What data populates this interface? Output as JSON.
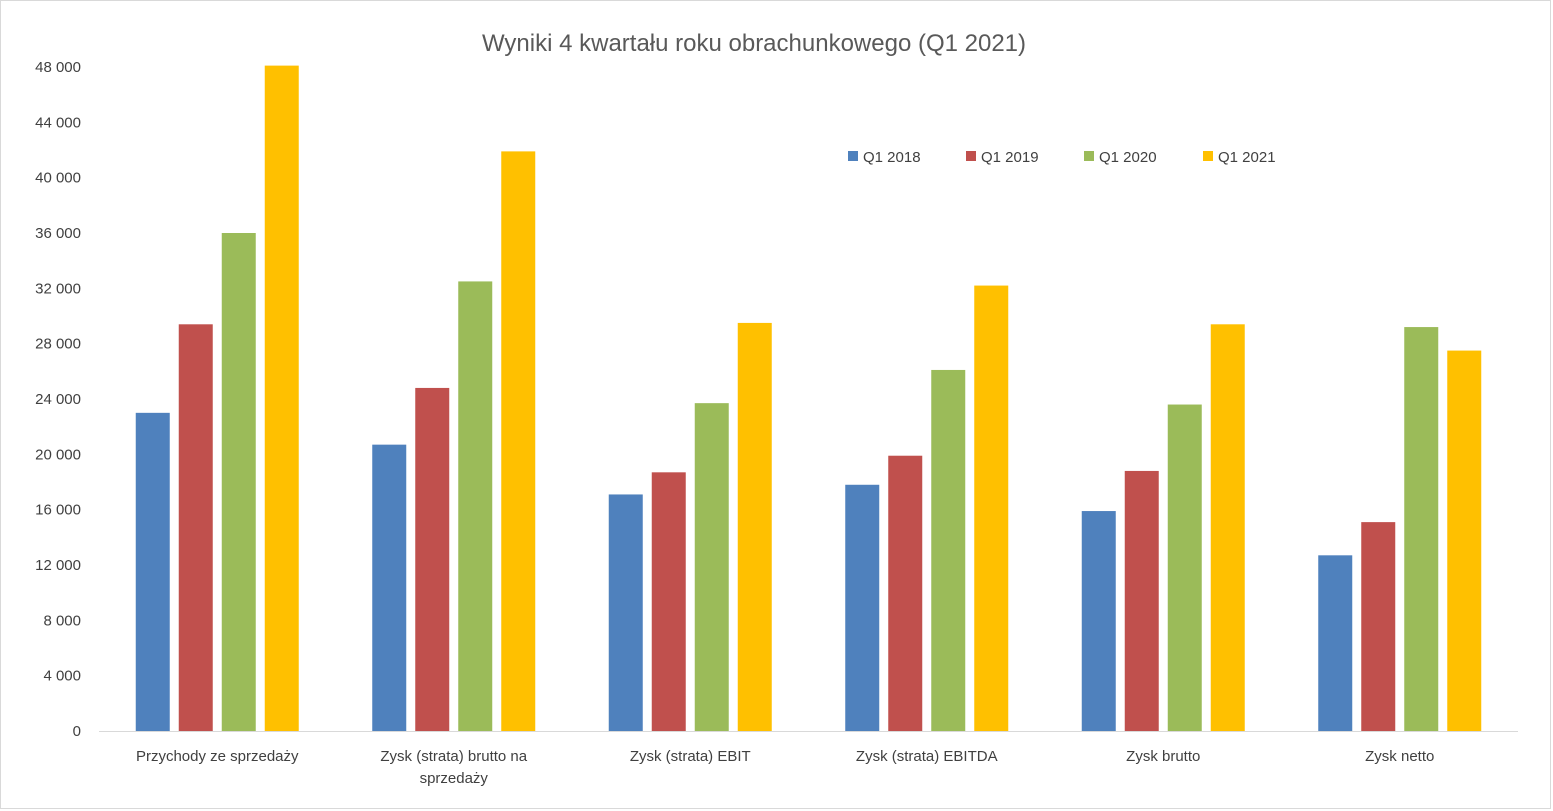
{
  "chart_data": {
    "type": "bar",
    "title": "Wyniki 4 kwartału roku obrachunkowego (Q1 2021)",
    "xlabel": "",
    "ylabel": "",
    "ylim": [
      0,
      48000
    ],
    "yticks": [
      0,
      4000,
      8000,
      12000,
      16000,
      20000,
      24000,
      28000,
      32000,
      36000,
      40000,
      44000,
      48000
    ],
    "ytick_labels": [
      "0",
      "4 000",
      "8 000",
      "12 000",
      "16 000",
      "20 000",
      "24 000",
      "28 000",
      "32 000",
      "36 000",
      "40 000",
      "44 000",
      "48 000"
    ],
    "grid": false,
    "legend_position": "top-right",
    "categories": [
      [
        "Przychody ze sprzedaży"
      ],
      [
        "Zysk (strata) brutto na",
        "sprzedaży"
      ],
      [
        "Zysk (strata) EBIT"
      ],
      [
        "Zysk (strata) EBITDA"
      ],
      [
        "Zysk brutto"
      ],
      [
        "Zysk netto"
      ]
    ],
    "series": [
      {
        "name": "Q1 2018",
        "color": "#4F81BD",
        "values": [
          23000,
          20700,
          17100,
          17800,
          15900,
          12700
        ]
      },
      {
        "name": "Q1 2019",
        "color": "#C0504D",
        "values": [
          29400,
          24800,
          18700,
          19900,
          18800,
          15100
        ]
      },
      {
        "name": "Q1 2020",
        "color": "#9BBB59",
        "values": [
          36000,
          32500,
          23700,
          26100,
          23600,
          29200
        ]
      },
      {
        "name": "Q1 2021",
        "color": "#FFC000",
        "values": [
          48100,
          41900,
          29500,
          32200,
          29400,
          27500
        ]
      }
    ]
  }
}
